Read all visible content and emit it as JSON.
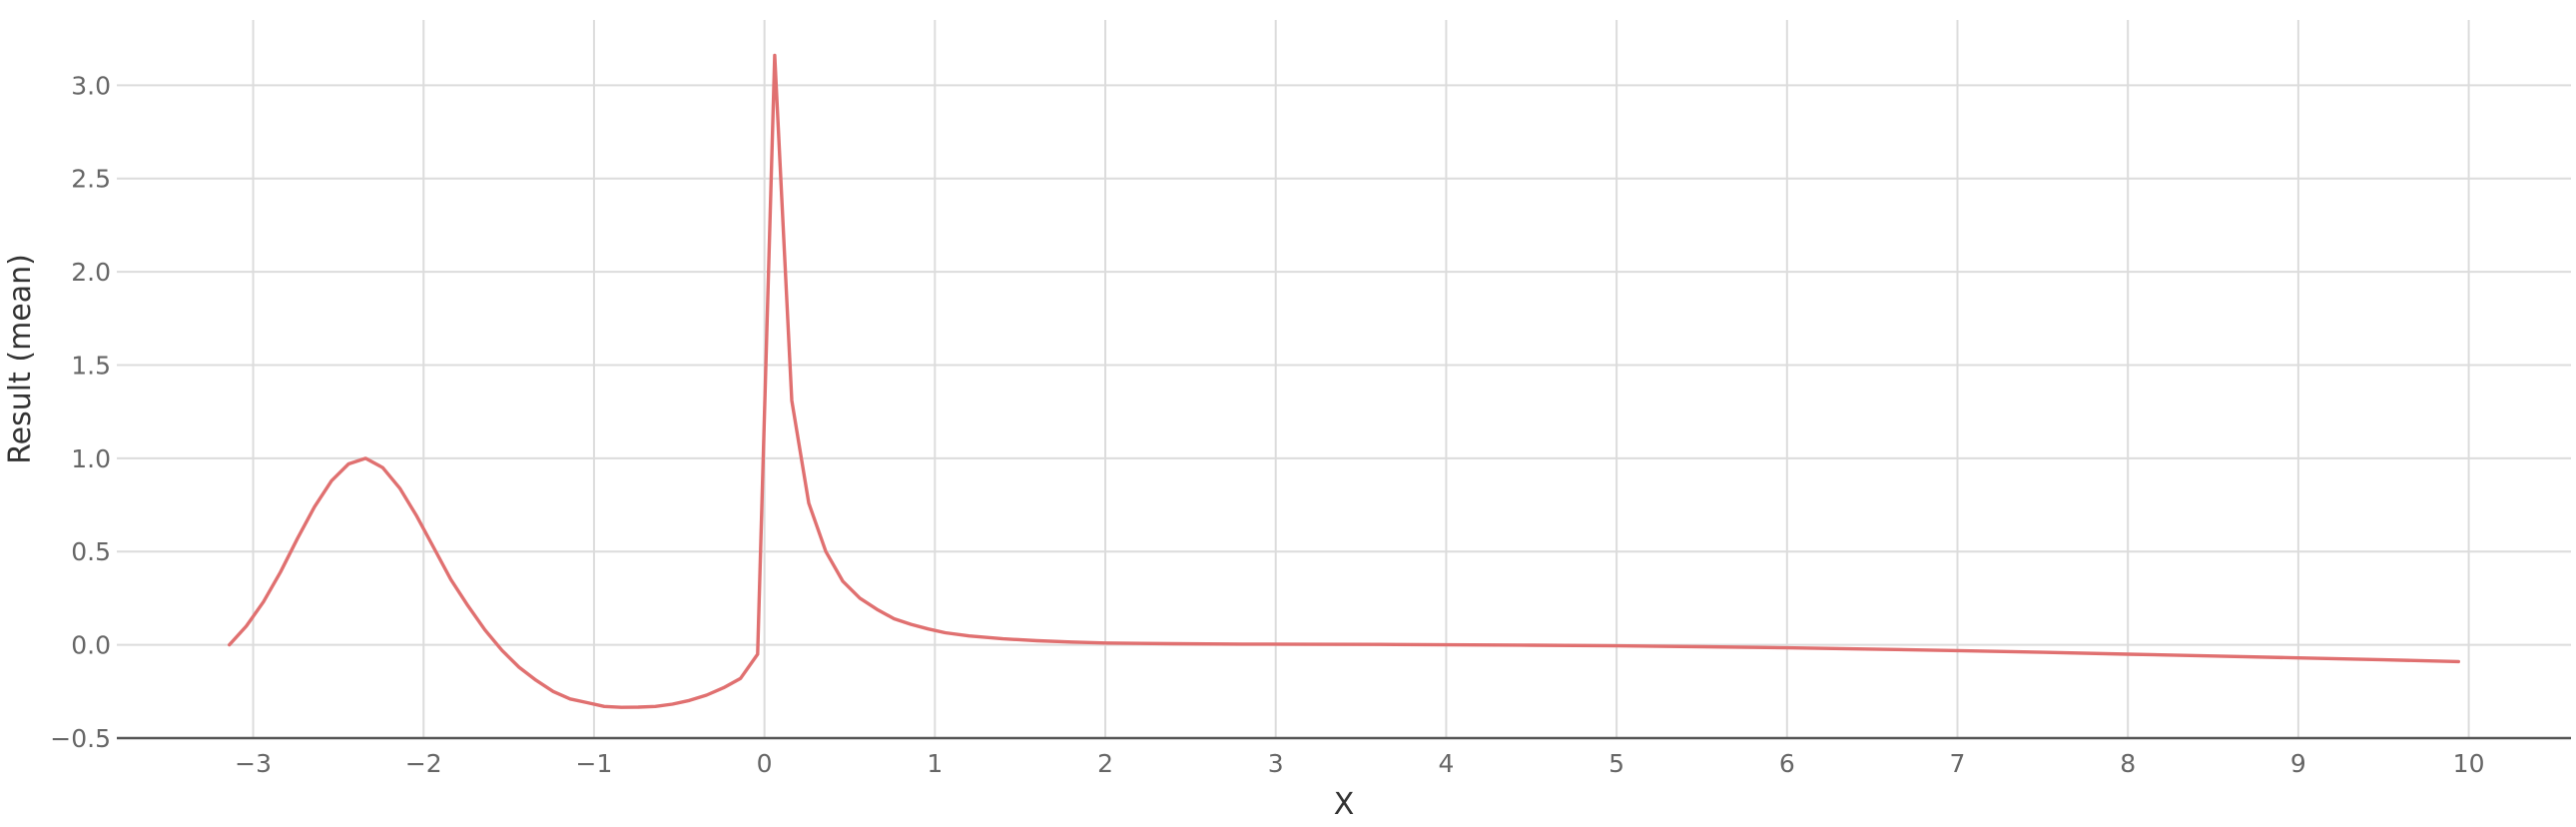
{
  "chart_data": {
    "type": "line",
    "title": "",
    "xlabel": "X",
    "ylabel": "Result (mean)",
    "xlim": [
      -3.8,
      10.6
    ],
    "ylim": [
      -0.5,
      3.35
    ],
    "x_ticks": [
      -3,
      -2,
      -1,
      0,
      1,
      2,
      3,
      4,
      5,
      6,
      7,
      8,
      9,
      10
    ],
    "x_tick_labels": [
      "−3",
      "−2",
      "−1",
      "0",
      "1",
      "2",
      "3",
      "4",
      "5",
      "6",
      "7",
      "8",
      "9",
      "10"
    ],
    "y_ticks": [
      -0.5,
      0,
      0.5,
      1,
      1.5,
      2,
      2.5,
      3
    ],
    "y_tick_labels": [
      "−0.5",
      "0.0",
      "0.5",
      "1.0",
      "1.5",
      "2.0",
      "2.5",
      "3.0"
    ],
    "grid": true,
    "legend": "none",
    "colors": {
      "series": "#e07070",
      "grid": "#dcdcdc",
      "axis": "#555555"
    },
    "series": [
      {
        "points": [
          [
            -3.14,
            0.0
          ],
          [
            -3.04,
            0.1
          ],
          [
            -2.94,
            0.23
          ],
          [
            -2.84,
            0.39
          ],
          [
            -2.74,
            0.57
          ],
          [
            -2.64,
            0.74
          ],
          [
            -2.54,
            0.88
          ],
          [
            -2.44,
            0.97
          ],
          [
            -2.34,
            1.0
          ],
          [
            -2.24,
            0.95
          ],
          [
            -2.14,
            0.84
          ],
          [
            -2.04,
            0.69
          ],
          [
            -1.94,
            0.52
          ],
          [
            -1.84,
            0.35
          ],
          [
            -1.74,
            0.21
          ],
          [
            -1.64,
            0.08
          ],
          [
            -1.54,
            -0.03
          ],
          [
            -1.44,
            -0.12
          ],
          [
            -1.34,
            -0.19
          ],
          [
            -1.24,
            -0.25
          ],
          [
            -1.14,
            -0.29
          ],
          [
            -1.04,
            -0.31
          ],
          [
            -0.94,
            -0.33
          ],
          [
            -0.84,
            -0.335
          ],
          [
            -0.74,
            -0.334
          ],
          [
            -0.64,
            -0.33
          ],
          [
            -0.54,
            -0.318
          ],
          [
            -0.44,
            -0.298
          ],
          [
            -0.34,
            -0.27
          ],
          [
            -0.24,
            -0.23
          ],
          [
            -0.14,
            -0.18
          ],
          [
            -0.04,
            -0.05
          ],
          [
            0.06,
            3.16
          ],
          [
            0.16,
            1.31
          ],
          [
            0.26,
            0.76
          ],
          [
            0.36,
            0.5
          ],
          [
            0.46,
            0.34
          ],
          [
            0.56,
            0.25
          ],
          [
            0.66,
            0.19
          ],
          [
            0.76,
            0.14
          ],
          [
            0.86,
            0.11
          ],
          [
            0.96,
            0.085
          ],
          [
            1.06,
            0.065
          ],
          [
            1.2,
            0.048
          ],
          [
            1.4,
            0.032
          ],
          [
            1.6,
            0.022
          ],
          [
            1.8,
            0.015
          ],
          [
            2.0,
            0.01
          ],
          [
            2.4,
            0.006
          ],
          [
            2.8,
            0.004
          ],
          [
            3.2,
            0.003
          ],
          [
            3.6,
            0.002
          ],
          [
            4.0,
            0.0
          ],
          [
            4.5,
            -0.002
          ],
          [
            5.0,
            -0.005
          ],
          [
            5.5,
            -0.01
          ],
          [
            6.0,
            -0.016
          ],
          [
            6.5,
            -0.023
          ],
          [
            7.0,
            -0.031
          ],
          [
            7.5,
            -0.04
          ],
          [
            8.0,
            -0.05
          ],
          [
            8.5,
            -0.06
          ],
          [
            9.0,
            -0.07
          ],
          [
            9.5,
            -0.08
          ],
          [
            9.94,
            -0.09
          ]
        ]
      }
    ]
  }
}
